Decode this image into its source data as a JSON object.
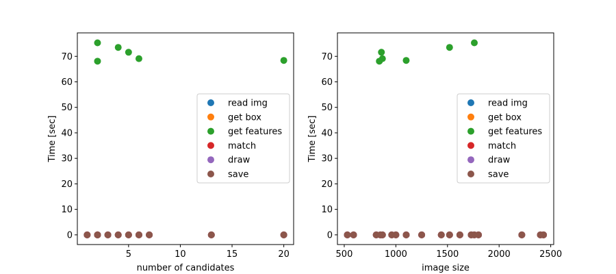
{
  "chart_data": [
    {
      "type": "scatter",
      "xlabel": "number of candidates",
      "ylabel": "Time [sec]",
      "xlim": [
        0.05,
        20.95
      ],
      "ylim": [
        -3.8,
        79.2
      ],
      "xticks": [
        5,
        10,
        15,
        20
      ],
      "yticks": [
        0,
        10,
        20,
        30,
        40,
        50,
        60,
        70
      ],
      "legend_position": "center-right",
      "series": [
        {
          "name": "read img",
          "color": "#1f77b4",
          "points": [
            [
              1,
              0
            ],
            [
              2,
              0
            ],
            [
              2,
              0
            ],
            [
              3,
              0
            ],
            [
              4,
              0
            ],
            [
              5,
              0
            ],
            [
              6,
              0
            ],
            [
              7,
              0
            ],
            [
              13,
              0
            ],
            [
              20,
              0
            ]
          ]
        },
        {
          "name": "get box",
          "color": "#ff7f0e",
          "points": [
            [
              1,
              0
            ],
            [
              2,
              0
            ],
            [
              2,
              0
            ],
            [
              3,
              0
            ],
            [
              4,
              0
            ],
            [
              5,
              0
            ],
            [
              6,
              0
            ],
            [
              7,
              0
            ],
            [
              13,
              0
            ],
            [
              20,
              0
            ]
          ]
        },
        {
          "name": "get features",
          "color": "#2ca02c",
          "points": [
            [
              2,
              75.3
            ],
            [
              2,
              68.1
            ],
            [
              4,
              73.5
            ],
            [
              5,
              71.6
            ],
            [
              6,
              69.1
            ],
            [
              20,
              68.4
            ]
          ]
        },
        {
          "name": "match",
          "color": "#d62728",
          "points": [
            [
              1,
              0
            ],
            [
              2,
              0
            ],
            [
              2,
              0
            ],
            [
              3,
              0
            ],
            [
              4,
              0
            ],
            [
              5,
              0
            ],
            [
              6,
              0
            ],
            [
              7,
              0
            ],
            [
              13,
              0
            ],
            [
              20,
              0
            ]
          ]
        },
        {
          "name": "draw",
          "color": "#9467bd",
          "points": [
            [
              1,
              0
            ],
            [
              2,
              0
            ],
            [
              2,
              0
            ],
            [
              3,
              0
            ],
            [
              4,
              0
            ],
            [
              5,
              0
            ],
            [
              6,
              0
            ],
            [
              7,
              0
            ],
            [
              13,
              0
            ],
            [
              20,
              0
            ]
          ]
        },
        {
          "name": "save",
          "color": "#8c564b",
          "points": [
            [
              1,
              0
            ],
            [
              2,
              0
            ],
            [
              2,
              0
            ],
            [
              3,
              0
            ],
            [
              4,
              0
            ],
            [
              5,
              0
            ],
            [
              6,
              0
            ],
            [
              7,
              0
            ],
            [
              13,
              0
            ],
            [
              20,
              0
            ]
          ]
        }
      ]
    },
    {
      "type": "scatter",
      "xlabel": "image size",
      "ylabel": "Time [sec]",
      "xlim": [
        434,
        2529
      ],
      "ylim": [
        -3.8,
        79.2
      ],
      "xticks": [
        500,
        1000,
        1500,
        2000,
        2500
      ],
      "yticks": [
        0,
        10,
        20,
        30,
        40,
        50,
        60,
        70
      ],
      "legend_position": "center-right",
      "series": [
        {
          "name": "read img",
          "color": "#1f77b4",
          "points": [
            [
              530,
              0
            ],
            [
              590,
              0
            ],
            [
              810,
              0
            ],
            [
              850,
              0
            ],
            [
              870,
              0
            ],
            [
              960,
              0
            ],
            [
              1000,
              0
            ],
            [
              1100,
              0
            ],
            [
              1250,
              0
            ],
            [
              1440,
              0
            ],
            [
              1520,
              0
            ],
            [
              1620,
              0
            ],
            [
              1730,
              0
            ],
            [
              1760,
              0
            ],
            [
              1800,
              0
            ],
            [
              2220,
              0
            ],
            [
              2400,
              0
            ],
            [
              2430,
              0
            ]
          ]
        },
        {
          "name": "get box",
          "color": "#ff7f0e",
          "points": [
            [
              530,
              0
            ],
            [
              590,
              0
            ],
            [
              810,
              0
            ],
            [
              850,
              0
            ],
            [
              870,
              0
            ],
            [
              960,
              0
            ],
            [
              1000,
              0
            ],
            [
              1100,
              0
            ],
            [
              1250,
              0
            ],
            [
              1440,
              0
            ],
            [
              1520,
              0
            ],
            [
              1620,
              0
            ],
            [
              1730,
              0
            ],
            [
              1760,
              0
            ],
            [
              1800,
              0
            ],
            [
              2220,
              0
            ],
            [
              2400,
              0
            ],
            [
              2430,
              0
            ]
          ]
        },
        {
          "name": "get features",
          "color": "#2ca02c",
          "points": [
            [
              840,
              68.1
            ],
            [
              860,
              71.6
            ],
            [
              870,
              69.1
            ],
            [
              1100,
              68.4
            ],
            [
              1520,
              73.5
            ],
            [
              1760,
              75.3
            ]
          ]
        },
        {
          "name": "match",
          "color": "#d62728",
          "points": [
            [
              530,
              0
            ],
            [
              590,
              0
            ],
            [
              810,
              0
            ],
            [
              850,
              0
            ],
            [
              870,
              0
            ],
            [
              960,
              0
            ],
            [
              1000,
              0
            ],
            [
              1100,
              0
            ],
            [
              1250,
              0
            ],
            [
              1440,
              0
            ],
            [
              1520,
              0
            ],
            [
              1620,
              0
            ],
            [
              1730,
              0
            ],
            [
              1760,
              0
            ],
            [
              1800,
              0
            ],
            [
              2220,
              0
            ],
            [
              2400,
              0
            ],
            [
              2430,
              0
            ]
          ]
        },
        {
          "name": "draw",
          "color": "#9467bd",
          "points": [
            [
              530,
              0
            ],
            [
              590,
              0
            ],
            [
              810,
              0
            ],
            [
              850,
              0
            ],
            [
              870,
              0
            ],
            [
              960,
              0
            ],
            [
              1000,
              0
            ],
            [
              1100,
              0
            ],
            [
              1250,
              0
            ],
            [
              1440,
              0
            ],
            [
              1520,
              0
            ],
            [
              1620,
              0
            ],
            [
              1730,
              0
            ],
            [
              1760,
              0
            ],
            [
              1800,
              0
            ],
            [
              2220,
              0
            ],
            [
              2400,
              0
            ],
            [
              2430,
              0
            ]
          ]
        },
        {
          "name": "save",
          "color": "#8c564b",
          "points": [
            [
              530,
              0
            ],
            [
              590,
              0
            ],
            [
              810,
              0
            ],
            [
              850,
              0
            ],
            [
              870,
              0
            ],
            [
              960,
              0
            ],
            [
              1000,
              0
            ],
            [
              1100,
              0
            ],
            [
              1250,
              0
            ],
            [
              1440,
              0
            ],
            [
              1520,
              0
            ],
            [
              1620,
              0
            ],
            [
              1730,
              0
            ],
            [
              1760,
              0
            ],
            [
              1800,
              0
            ],
            [
              2220,
              0
            ],
            [
              2400,
              0
            ],
            [
              2430,
              0
            ]
          ]
        }
      ]
    }
  ]
}
